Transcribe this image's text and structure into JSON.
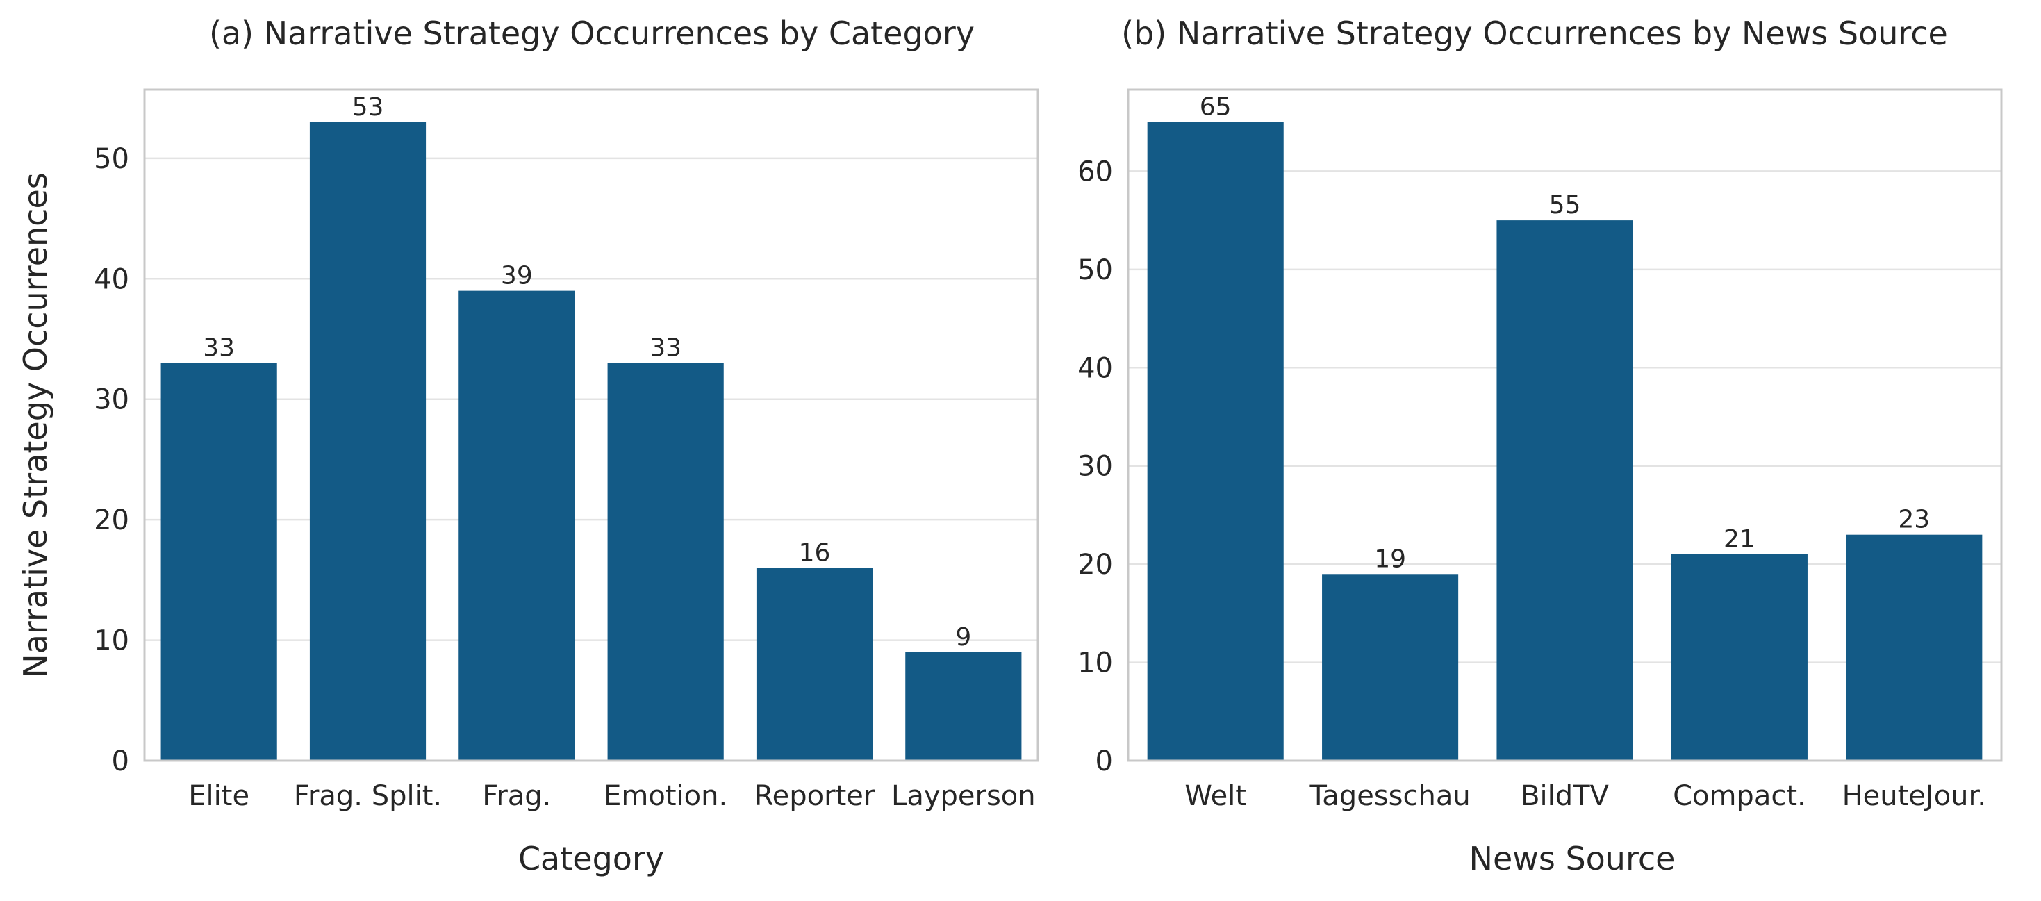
{
  "chart_data": [
    {
      "type": "bar",
      "title": "(a) Narrative Strategy Occurrences by Category",
      "xlabel": "Category",
      "ylabel": "Narrative Strategy Occurrences",
      "categories": [
        "Elite",
        "Frag. Split.",
        "Frag.",
        "Emotion.",
        "Reporter",
        "Layperson"
      ],
      "values": [
        33,
        53,
        39,
        33,
        16,
        9
      ],
      "ylim": [
        0,
        55.7
      ],
      "yticks": [
        "0",
        "10",
        "20",
        "30",
        "40",
        "50"
      ],
      "grid": "horizontal",
      "bar_color": "#135a86"
    },
    {
      "type": "bar",
      "title": "(b) Narrative Strategy Occurrences by News Source",
      "xlabel": "News Source",
      "ylabel": "",
      "categories": [
        "Welt",
        "Tagesschau",
        "BildTV",
        "Compact.",
        "HeuteJour."
      ],
      "values": [
        65,
        19,
        55,
        21,
        23
      ],
      "ylim": [
        0,
        68.3
      ],
      "yticks": [
        "0",
        "10",
        "20",
        "30",
        "40",
        "50",
        "60"
      ],
      "grid": "horizontal",
      "bar_color": "#135a86"
    }
  ]
}
